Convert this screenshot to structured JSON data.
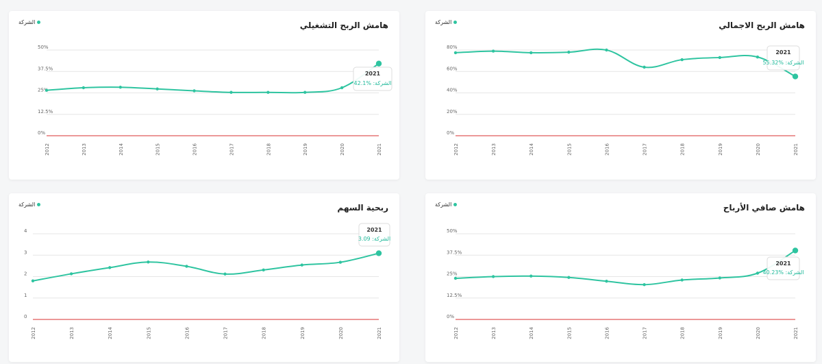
{
  "colors": {
    "line": "#2ec4a0",
    "zero": "#e05a5a",
    "grid": "#e6e6e6"
  },
  "years": [
    "2012",
    "2013",
    "2014",
    "2015",
    "2016",
    "2017",
    "2018",
    "2019",
    "2020",
    "2021"
  ],
  "chart_data": [
    {
      "id": "operating",
      "type": "line",
      "title": "هامش الربح التشغيلي",
      "legend": "الشركة",
      "yticks": [
        "0%",
        "12.5%",
        "25%",
        "37.5%",
        "50%"
      ],
      "ylim": [
        0,
        50
      ],
      "x": [
        "2012",
        "2013",
        "2014",
        "2015",
        "2016",
        "2017",
        "2018",
        "2019",
        "2020",
        "2021"
      ],
      "series": [
        {
          "name": "الشركة",
          "values": [
            26.5,
            28,
            28.3,
            27.3,
            26.2,
            25.3,
            25.3,
            25.3,
            28,
            42.1
          ]
        }
      ],
      "tooltip": {
        "year": "2021",
        "label": "الشركة:",
        "value": "%42.1"
      }
    },
    {
      "id": "gross",
      "type": "line",
      "title": "هامش الربح الاجمالي",
      "legend": "الشركة",
      "yticks": [
        "0%",
        "20%",
        "40%",
        "60%",
        "80%"
      ],
      "ylim": [
        0,
        80
      ],
      "x": [
        "2012",
        "2013",
        "2014",
        "2015",
        "2016",
        "2017",
        "2018",
        "2019",
        "2020",
        "2021"
      ],
      "series": [
        {
          "name": "الشركة",
          "values": [
            77.5,
            79,
            77.5,
            78,
            80,
            64,
            71,
            73,
            73.5,
            55.32
          ]
        }
      ],
      "tooltip": {
        "year": "2021",
        "label": "الشركة:",
        "value": "%55.32"
      }
    },
    {
      "id": "eps",
      "type": "line",
      "title": "ربحية السهم",
      "legend": "الشركة",
      "yticks": [
        "0",
        "1",
        "2",
        "3",
        "4"
      ],
      "ylim": [
        0,
        4
      ],
      "x": [
        "2012",
        "2013",
        "2014",
        "2015",
        "2016",
        "2017",
        "2018",
        "2019",
        "2020",
        "2021"
      ],
      "series": [
        {
          "name": "الشركة",
          "values": [
            1.8,
            2.13,
            2.42,
            2.68,
            2.48,
            2.12,
            2.31,
            2.54,
            2.67,
            3.09
          ]
        }
      ],
      "tooltip": {
        "year": "2021",
        "label": "الشركة:",
        "value": "3.09"
      }
    },
    {
      "id": "net",
      "type": "line",
      "title": "هامش صافي الأرباح",
      "legend": "الشركة",
      "yticks": [
        "0%",
        "12.5%",
        "25%",
        "37.5%",
        "50%"
      ],
      "ylim": [
        0,
        50
      ],
      "x": [
        "2012",
        "2013",
        "2014",
        "2015",
        "2016",
        "2017",
        "2018",
        "2019",
        "2020",
        "2021"
      ],
      "series": [
        {
          "name": "الشركة",
          "values": [
            24,
            25,
            25.3,
            24.5,
            22.3,
            20.3,
            23,
            24.2,
            27,
            40.23
          ]
        }
      ],
      "tooltip": {
        "year": "2021",
        "label": "الشركة:",
        "value": "%40.23"
      }
    }
  ]
}
